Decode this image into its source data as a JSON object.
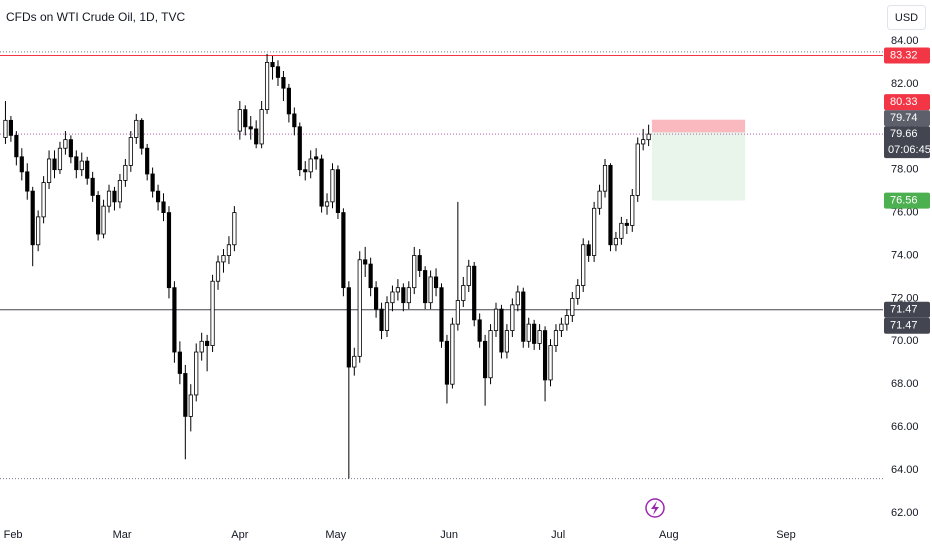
{
  "chart_data": {
    "type": "candlestick",
    "title": "CFDs on WTI Crude Oil, 1D, TVC",
    "currency": "USD",
    "xlim": [
      -1,
      161
    ],
    "ylim": [
      61.67,
      85.91
    ],
    "grid": false,
    "up_color": "#ffffff",
    "down_color": "#000000",
    "border_color": "#000000",
    "xticks": [
      {
        "value": 1.4,
        "label": "Feb"
      },
      {
        "value": 21.4,
        "label": "Mar"
      },
      {
        "value": 43,
        "label": "Apr"
      },
      {
        "value": 60.6,
        "label": "May"
      },
      {
        "value": 81.4,
        "label": "Jun"
      },
      {
        "value": 101.4,
        "label": "Jul"
      },
      {
        "value": 121.7,
        "label": "Aug"
      },
      {
        "value": 143.2,
        "label": "Sep"
      }
    ],
    "yticks": [
      {
        "value": 62,
        "label": "62.00"
      },
      {
        "value": 64,
        "label": "64.00"
      },
      {
        "value": 66,
        "label": "66.00"
      },
      {
        "value": 68,
        "label": "68.00"
      },
      {
        "value": 70,
        "label": "70.00"
      },
      {
        "value": 72,
        "label": "72.00"
      },
      {
        "value": 74,
        "label": "74.00"
      },
      {
        "value": 76,
        "label": "76.00"
      },
      {
        "value": 78,
        "label": "78.00"
      },
      {
        "value": 80,
        "label": "80.00"
      },
      {
        "value": 82,
        "label": "82.00"
      },
      {
        "value": 84,
        "label": "84.00"
      }
    ],
    "ohlc": [
      [
        79.5,
        81.2,
        79.2,
        80.3
      ],
      [
        80.3,
        80.5,
        79.3,
        79.6
      ],
      [
        79.6,
        79.8,
        78.2,
        78.6
      ],
      [
        78.6,
        79.0,
        77.5,
        77.9
      ],
      [
        77.9,
        78.3,
        76.6,
        77.0
      ],
      [
        77.0,
        77.2,
        73.5,
        74.5
      ],
      [
        74.5,
        76.1,
        74.2,
        75.8
      ],
      [
        75.8,
        77.7,
        75.5,
        77.4
      ],
      [
        77.4,
        78.9,
        77.1,
        78.5
      ],
      [
        78.5,
        78.9,
        77.6,
        78.0
      ],
      [
        78.0,
        79.3,
        77.8,
        79.0
      ],
      [
        79.0,
        79.8,
        78.7,
        79.4
      ],
      [
        79.4,
        79.6,
        78.3,
        78.6
      ],
      [
        78.6,
        78.9,
        77.6,
        78.0
      ],
      [
        78.0,
        78.8,
        77.7,
        78.4
      ],
      [
        78.4,
        78.6,
        77.3,
        77.6
      ],
      [
        77.6,
        77.9,
        76.5,
        76.8
      ],
      [
        76.8,
        77.0,
        74.7,
        75.0
      ],
      [
        75.0,
        76.6,
        74.8,
        76.3
      ],
      [
        76.3,
        77.3,
        76.0,
        77.0
      ],
      [
        77.0,
        77.2,
        76.1,
        76.5
      ],
      [
        76.5,
        77.8,
        76.2,
        77.5
      ],
      [
        77.5,
        78.5,
        77.2,
        78.2
      ],
      [
        78.2,
        79.8,
        77.9,
        79.5
      ],
      [
        79.5,
        80.6,
        79.2,
        80.3
      ],
      [
        80.3,
        80.4,
        78.7,
        79.0
      ],
      [
        79.0,
        79.2,
        77.5,
        77.8
      ],
      [
        77.8,
        78.1,
        76.7,
        77.0
      ],
      [
        77.0,
        77.3,
        76.1,
        76.5
      ],
      [
        76.5,
        76.9,
        75.6,
        76.0
      ],
      [
        76.0,
        76.3,
        72.0,
        72.5
      ],
      [
        72.5,
        72.8,
        69.0,
        69.5
      ],
      [
        69.5,
        70.0,
        68.0,
        68.5
      ],
      [
        68.5,
        68.9,
        64.5,
        66.5
      ],
      [
        66.5,
        68.0,
        65.8,
        67.5
      ],
      [
        67.5,
        69.9,
        67.2,
        69.5
      ],
      [
        69.5,
        70.4,
        69.1,
        70.0
      ],
      [
        70.0,
        70.3,
        68.6,
        69.8
      ],
      [
        69.8,
        73.1,
        69.5,
        72.8
      ],
      [
        72.8,
        74.0,
        72.4,
        73.7
      ],
      [
        73.7,
        74.3,
        73.2,
        74.0
      ],
      [
        74.0,
        74.9,
        73.6,
        74.5
      ],
      [
        74.5,
        76.3,
        74.2,
        76.0
      ],
      [
        79.8,
        81.2,
        79.4,
        80.8
      ],
      [
        80.8,
        81.0,
        79.6,
        80.0
      ],
      [
        80.0,
        80.5,
        79.4,
        79.9
      ],
      [
        79.9,
        80.3,
        79.0,
        79.2
      ],
      [
        79.2,
        81.2,
        79.0,
        80.8
      ],
      [
        80.8,
        83.4,
        80.6,
        83.0
      ],
      [
        83.0,
        83.3,
        82.2,
        82.8
      ],
      [
        82.8,
        83.1,
        81.9,
        82.3
      ],
      [
        82.3,
        82.6,
        81.2,
        81.8
      ],
      [
        81.8,
        82.0,
        80.2,
        80.6
      ],
      [
        80.6,
        80.9,
        79.6,
        80.0
      ],
      [
        80.0,
        80.2,
        77.7,
        78.0
      ],
      [
        78.0,
        78.4,
        77.5,
        77.9
      ],
      [
        77.9,
        78.9,
        77.6,
        78.5
      ],
      [
        78.6,
        79.0,
        78.0,
        78.5
      ],
      [
        78.5,
        78.7,
        76.0,
        76.3
      ],
      [
        76.3,
        76.9,
        75.9,
        76.5
      ],
      [
        76.5,
        78.3,
        76.2,
        78.0
      ],
      [
        78.0,
        78.2,
        75.7,
        76.0
      ],
      [
        76.0,
        76.2,
        72.1,
        72.5
      ],
      [
        72.5,
        72.8,
        63.6,
        68.8
      ],
      [
        68.8,
        69.7,
        68.4,
        69.3
      ],
      [
        69.3,
        74.2,
        69.0,
        73.8
      ],
      [
        73.8,
        74.4,
        73.0,
        73.6
      ],
      [
        73.6,
        73.9,
        72.1,
        72.5
      ],
      [
        72.5,
        72.8,
        71.1,
        71.5
      ],
      [
        71.5,
        71.8,
        70.1,
        70.5
      ],
      [
        70.5,
        72.1,
        70.2,
        71.8
      ],
      [
        71.8,
        72.6,
        71.4,
        72.3
      ],
      [
        72.3,
        72.9,
        71.9,
        72.5
      ],
      [
        72.5,
        72.7,
        71.4,
        71.8
      ],
      [
        71.8,
        72.8,
        71.5,
        72.5
      ],
      [
        72.5,
        74.4,
        72.2,
        74.0
      ],
      [
        74.0,
        74.3,
        73.0,
        73.3
      ],
      [
        73.3,
        73.5,
        71.5,
        71.8
      ],
      [
        71.8,
        73.3,
        71.5,
        73.0
      ],
      [
        73.0,
        73.4,
        72.1,
        72.5
      ],
      [
        72.5,
        72.7,
        69.7,
        70.0
      ],
      [
        70.0,
        70.3,
        67.1,
        68.0
      ],
      [
        68.0,
        71.1,
        67.8,
        70.8
      ],
      [
        70.8,
        76.5,
        70.5,
        71.9
      ],
      [
        71.9,
        73.0,
        71.6,
        72.6
      ],
      [
        72.6,
        73.8,
        72.3,
        73.5
      ],
      [
        73.5,
        73.7,
        70.7,
        71.0
      ],
      [
        71.0,
        71.3,
        69.7,
        70.0
      ],
      [
        70.0,
        70.3,
        67.0,
        68.3
      ],
      [
        68.3,
        70.8,
        68.0,
        70.5
      ],
      [
        70.5,
        71.8,
        70.2,
        71.5
      ],
      [
        71.5,
        71.7,
        69.2,
        69.5
      ],
      [
        69.5,
        70.8,
        69.2,
        70.5
      ],
      [
        70.5,
        72.0,
        70.2,
        71.7
      ],
      [
        71.7,
        72.6,
        71.4,
        72.3
      ],
      [
        72.3,
        72.5,
        69.7,
        70.0
      ],
      [
        70.0,
        71.1,
        69.7,
        70.8
      ],
      [
        70.8,
        71.0,
        69.6,
        69.9
      ],
      [
        69.9,
        70.8,
        69.6,
        70.5
      ],
      [
        70.5,
        70.7,
        67.2,
        68.2
      ],
      [
        68.2,
        70.1,
        67.9,
        69.8
      ],
      [
        69.8,
        70.8,
        69.5,
        70.5
      ],
      [
        70.5,
        71.1,
        70.2,
        70.8
      ],
      [
        70.8,
        71.5,
        70.5,
        71.2
      ],
      [
        71.2,
        72.3,
        70.9,
        72.0
      ],
      [
        72.0,
        72.9,
        71.7,
        72.6
      ],
      [
        72.6,
        74.8,
        72.3,
        74.5
      ],
      [
        74.5,
        74.7,
        73.7,
        74.0
      ],
      [
        74.0,
        76.5,
        73.7,
        76.2
      ],
      [
        76.2,
        77.3,
        75.9,
        77.0
      ],
      [
        77.0,
        78.5,
        76.7,
        78.2
      ],
      [
        78.2,
        78.3,
        74.2,
        74.5
      ],
      [
        74.5,
        75.1,
        74.2,
        74.8
      ],
      [
        74.8,
        75.8,
        74.5,
        75.5
      ],
      [
        75.5,
        75.7,
        75.0,
        75.4
      ],
      [
        75.4,
        77.1,
        75.1,
        76.8
      ],
      [
        76.8,
        79.5,
        76.5,
        79.2
      ],
      [
        79.2,
        79.9,
        78.9,
        79.4
      ],
      [
        79.4,
        80.1,
        79.1,
        79.66
      ]
    ],
    "levels": [
      {
        "value": 83.49,
        "color": "#787b86",
        "style": "dotted"
      },
      {
        "value": 83.32,
        "color": "#f23645",
        "style": "solid"
      },
      {
        "value": 79.66,
        "color": "#b05bb5",
        "style": "dotted"
      },
      {
        "value": 71.47,
        "color": "#434651",
        "style": "solid"
      },
      {
        "value": 63.6,
        "color": "#787b86",
        "style": "dotted"
      }
    ],
    "position": {
      "entry": 79.74,
      "stop": 80.33,
      "target": 76.56,
      "x_start": 118.6,
      "x_end": 135.7,
      "stop_color": "rgba(242,54,69,0.35)",
      "target_color": "rgba(76,175,80,0.12)"
    },
    "price_labels": [
      {
        "value": 79.66,
        "color": "#434651",
        "countdown": "07:06:45"
      },
      {
        "value": 79.74,
        "color": "#5d606b"
      },
      {
        "value": 80.33,
        "color": "#f23645"
      },
      {
        "value": 83.32,
        "color": "#f23645"
      },
      {
        "value": 76.56,
        "color": "#4caf50"
      },
      {
        "value": 71.47,
        "color": "#434651"
      },
      {
        "value": 71.47,
        "color": "#434651"
      }
    ]
  }
}
